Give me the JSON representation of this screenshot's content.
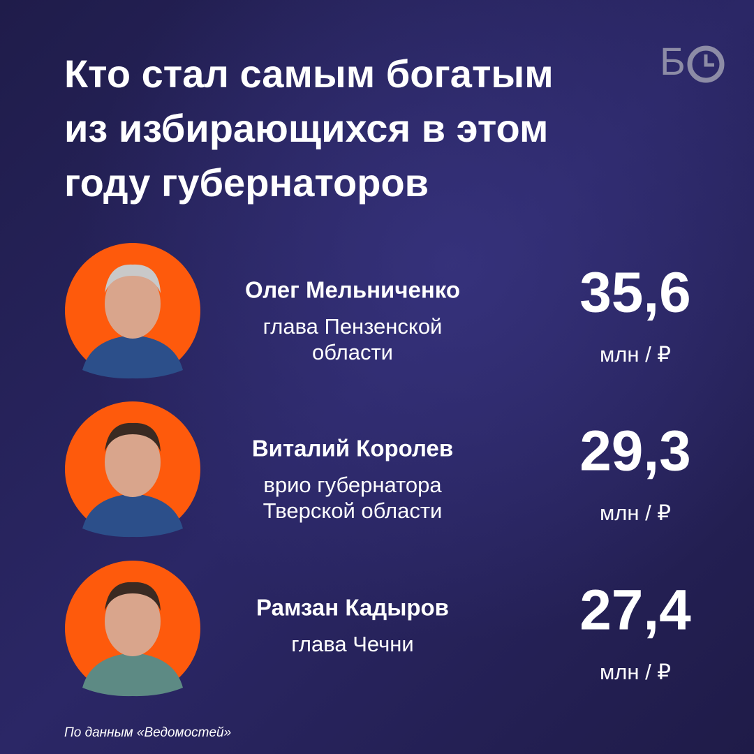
{
  "header": {
    "title_lines": [
      "Кто стал самым богатым",
      "из избирающихся в этом",
      "году губернаторов"
    ],
    "logo": "Б"
  },
  "items": [
    {
      "name": "Олег Мельниченко",
      "role_lines": [
        "глава Пензенской",
        "области"
      ],
      "value": "35,6",
      "unit": "млн / ₽"
    },
    {
      "name": "Виталий Королев",
      "role_lines": [
        "врио губернатора",
        "Тверской области"
      ],
      "value": "29,3",
      "unit": "млн / ₽"
    },
    {
      "name": "Рамзан Кадыров",
      "role_lines": [
        "глава Чечни"
      ],
      "value": "27,4",
      "unit": "млн / ₽"
    }
  ],
  "footer": {
    "source": "По данным «Ведомостей»"
  }
}
